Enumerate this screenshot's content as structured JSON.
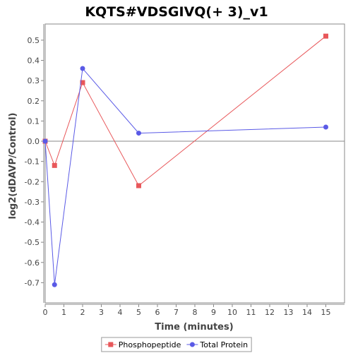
{
  "chart_data": {
    "type": "line",
    "title": "KQTS#VDSGIVQ(+ 3)_v1",
    "xlabel": "Time (minutes)",
    "ylabel": "log2(dDAVP/Control)",
    "xlim": [
      0,
      16
    ],
    "ylim": [
      -0.8,
      0.58
    ],
    "xticks": [
      0,
      1,
      2,
      3,
      4,
      5,
      6,
      7,
      8,
      9,
      10,
      11,
      12,
      13,
      14,
      15
    ],
    "yticks": [
      -0.7,
      -0.6,
      -0.5,
      -0.4,
      -0.3,
      -0.2,
      -0.1,
      0.0,
      0.1,
      0.2,
      0.3,
      0.4,
      0.5
    ],
    "ytick_labels": [
      "-0.7",
      "-0.6",
      "-0.5",
      "-0.4",
      "-0.3",
      "-0.2",
      "-0.1",
      "0.0",
      "0.1",
      "0.2",
      "0.3",
      "0.4",
      "0.5"
    ],
    "grid": false,
    "legend_position": "bottom",
    "series": [
      {
        "name": "Phosphopeptide",
        "color": "#e8575a",
        "marker": "square",
        "x": [
          0,
          0.5,
          2,
          5,
          15
        ],
        "y": [
          0.0,
          -0.12,
          0.29,
          -0.22,
          0.52
        ]
      },
      {
        "name": "Total Protein",
        "color": "#5a5ae6",
        "marker": "circle",
        "x": [
          0,
          0.5,
          2,
          5,
          15
        ],
        "y": [
          0.0,
          -0.71,
          0.36,
          0.04,
          0.07
        ]
      }
    ]
  }
}
